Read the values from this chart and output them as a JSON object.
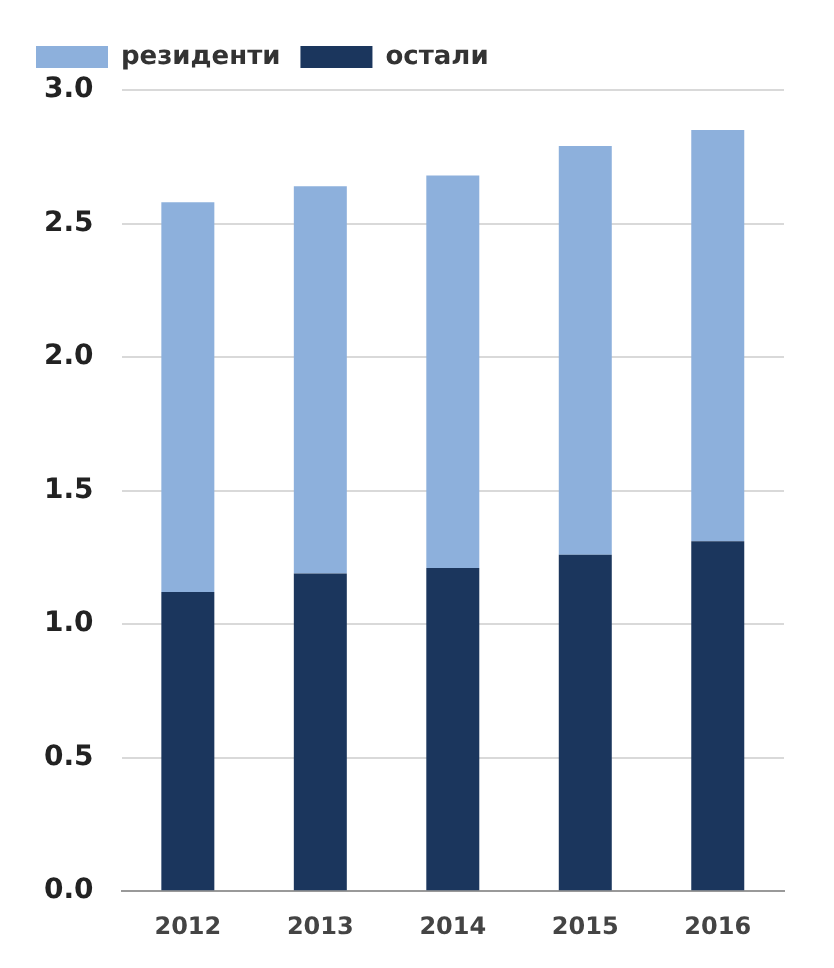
{
  "chart_data": {
    "type": "bar",
    "stacked": true,
    "categories": [
      "2012",
      "2013",
      "2014",
      "2015",
      "2016"
    ],
    "series": [
      {
        "name": "остали",
        "color": "#1b365d",
        "values": [
          1.12,
          1.19,
          1.21,
          1.26,
          1.31
        ]
      },
      {
        "name": "резиденти",
        "color": "#8db0dc",
        "values": [
          1.46,
          1.45,
          1.47,
          1.53,
          1.54
        ]
      }
    ],
    "ylim": [
      0,
      3
    ],
    "yticks": [
      {
        "value": 0,
        "label": "0.0"
      },
      {
        "value": 0.5,
        "label": "0.5"
      },
      {
        "value": 1,
        "label": "1.0"
      },
      {
        "value": 1.5,
        "label": "1.5"
      },
      {
        "value": 2,
        "label": "2.0"
      },
      {
        "value": 2.5,
        "label": "2.5"
      },
      {
        "value": 3,
        "label": "3.0"
      }
    ],
    "grid": "y",
    "legend": "top left"
  }
}
